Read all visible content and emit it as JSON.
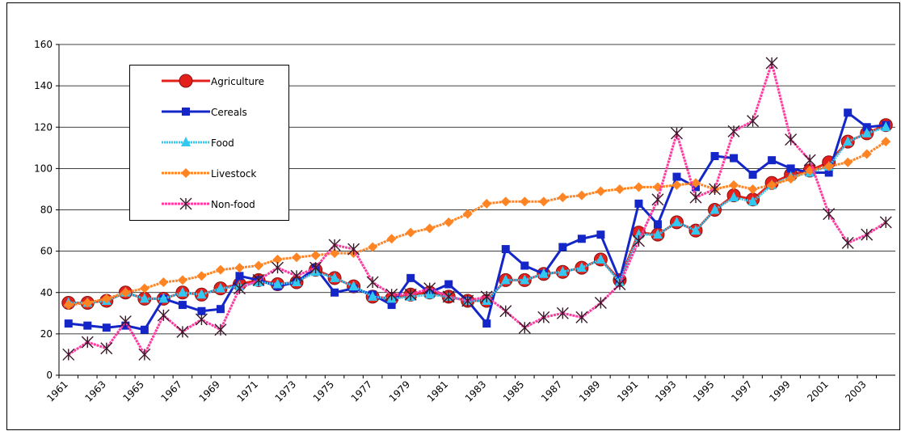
{
  "chart_data": {
    "type": "line",
    "categories": [
      "1961",
      null,
      "1963",
      null,
      "1965",
      null,
      "1967",
      null,
      "1969",
      null,
      "1971",
      null,
      "1973",
      null,
      "1975",
      null,
      "1977",
      null,
      "1979",
      null,
      "1981",
      null,
      "1983",
      null,
      "1985",
      null,
      "1987",
      null,
      "1989",
      null,
      "1991",
      null,
      "1993",
      null,
      "1995",
      null,
      "1997",
      null,
      "1999",
      null,
      "2001",
      null,
      "2003",
      null
    ],
    "series": [
      {
        "name": "Agriculture",
        "color": "#e3201b",
        "marker": "circle",
        "values": [
          35,
          35,
          36,
          40,
          37,
          37,
          40,
          39,
          42,
          44,
          46,
          44,
          45,
          51,
          47,
          43,
          38,
          37,
          39,
          40,
          38,
          36,
          36,
          46,
          46,
          49,
          50,
          52,
          56,
          46,
          69,
          68,
          74,
          70,
          80,
          87,
          85,
          93,
          97,
          99,
          103,
          113,
          117,
          121
        ]
      },
      {
        "name": "Cereals",
        "color": "#1426c8",
        "marker": "square",
        "values": [
          25,
          24,
          23,
          24,
          22,
          37,
          34,
          31,
          32,
          48,
          46,
          43,
          45,
          52,
          40,
          42,
          39,
          34,
          47,
          40,
          44,
          36,
          25,
          61,
          53,
          49,
          62,
          66,
          68,
          46,
          83,
          73,
          96,
          91,
          106,
          105,
          97,
          104,
          100,
          98,
          98,
          127,
          120,
          121
        ]
      },
      {
        "name": "Food",
        "color": "#33c8f0",
        "marker": "triangle",
        "values": [
          35,
          35,
          36,
          40,
          37,
          37,
          40,
          39,
          42,
          43,
          45,
          44,
          45,
          50,
          47,
          43,
          38,
          37,
          38,
          39,
          38,
          36,
          36,
          46,
          46,
          49,
          50,
          52,
          56,
          45,
          68,
          68,
          74,
          70,
          80,
          86,
          84,
          92,
          96,
          98,
          101,
          113,
          117,
          120
        ]
      },
      {
        "name": "Livestock",
        "color": "#ff8424",
        "marker": "diamond",
        "values": [
          34,
          35,
          37,
          40,
          42,
          45,
          46,
          48,
          51,
          52,
          53,
          56,
          57,
          58,
          59,
          59,
          62,
          66,
          69,
          71,
          74,
          78,
          83,
          84,
          84,
          84,
          86,
          87,
          89,
          90,
          91,
          91,
          92,
          93,
          90,
          92,
          90,
          92,
          95,
          99,
          101,
          103,
          107,
          113
        ]
      },
      {
        "name": "Non-food",
        "color": "#ff3aa0",
        "marker": "star",
        "values": [
          10,
          16,
          13,
          26,
          10,
          29,
          21,
          27,
          22,
          42,
          46,
          52,
          48,
          52,
          63,
          61,
          45,
          39,
          39,
          42,
          38,
          36,
          38,
          31,
          23,
          28,
          30,
          28,
          35,
          44,
          65,
          85,
          117,
          86,
          90,
          118,
          123,
          151,
          114,
          104,
          78,
          64,
          68,
          74
        ]
      }
    ],
    "ylim": [
      0,
      160
    ],
    "yticks": [
      0,
      20,
      40,
      60,
      80,
      100,
      120,
      140,
      160
    ],
    "grid": true,
    "legend": "upper-left"
  }
}
